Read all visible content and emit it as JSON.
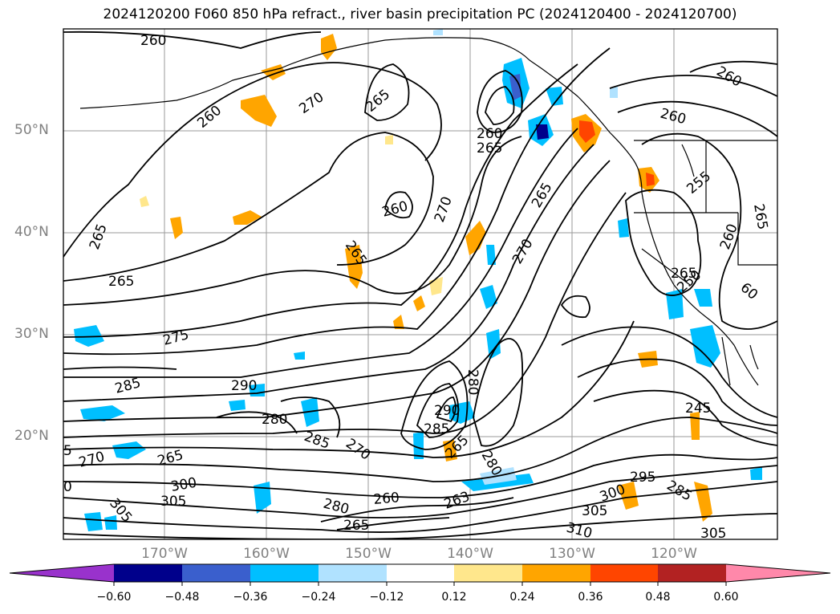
{
  "title": "2024120200 F060 850 hPa refract., river basin precipitation PC (2024120400 - 2024120700)",
  "map": {
    "projection": "lat-lon",
    "lon_range": [
      "~180°W",
      "~110°W"
    ],
    "lat_range": [
      "~10°N",
      "~60°N"
    ],
    "latitude_labels": [
      "50°N",
      "40°N",
      "30°N",
      "20°N"
    ],
    "longitude_labels": [
      "170°W",
      "160°W",
      "150°W",
      "140°W",
      "130°W",
      "120°W"
    ],
    "contour_labels": [
      "260",
      "270",
      "265",
      "260",
      "260",
      "265",
      "260",
      "270",
      "265",
      "260",
      "260",
      "255",
      "265",
      "265",
      "265",
      "275",
      "270",
      "265",
      "260",
      "265",
      "250",
      "60",
      "285",
      "290",
      "280",
      "285",
      "290",
      "285",
      "280",
      "270",
      "270",
      "265",
      "265",
      "280",
      "245",
      "295",
      "285",
      "300",
      "305",
      "305",
      "310",
      "305",
      "300",
      "280",
      "260",
      "263",
      "5",
      "0",
      "305",
      "265"
    ],
    "features": [
      "850 hPa refractivity contours (black)",
      "precipitation PC shading",
      "coastlines",
      "US state borders"
    ]
  },
  "colorbar": {
    "ticks": [
      "−0.60",
      "−0.48",
      "−0.36",
      "−0.24",
      "−0.12",
      "0.12",
      "0.24",
      "0.36",
      "0.48",
      "0.60"
    ],
    "colors": [
      "#9932cc",
      "#00008b",
      "#3a5fcd",
      "#00bfff",
      "#b0e2ff",
      "#ffffff",
      "#ffe78c",
      "#ffa500",
      "#ff4500",
      "#b22222",
      "#ff88aa"
    ]
  }
}
